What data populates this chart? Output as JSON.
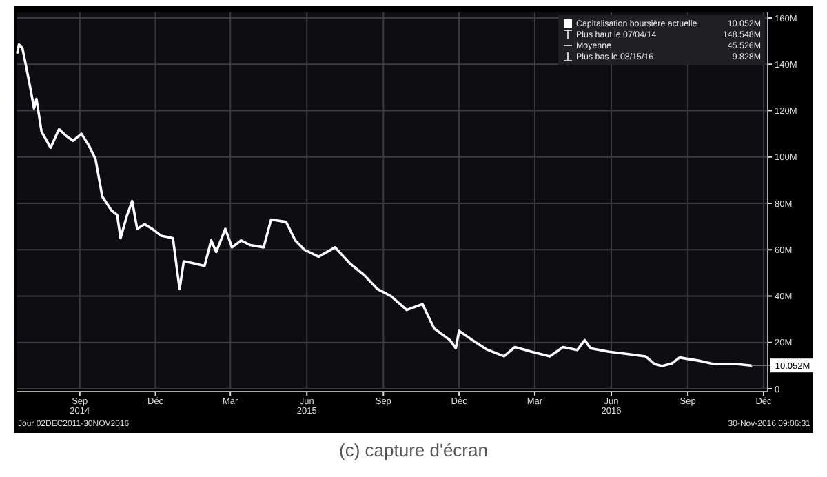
{
  "chart_data": {
    "type": "line",
    "x": [
      "2014-07-02",
      "2014-07-04",
      "2014-07-08",
      "2014-07-12",
      "2014-07-18",
      "2014-07-22",
      "2014-07-25",
      "2014-07-31",
      "2014-08-11",
      "2014-08-21",
      "2014-08-30",
      "2014-09-07",
      "2014-09-17",
      "2014-09-26",
      "2014-10-04",
      "2014-10-12",
      "2014-10-23",
      "2014-10-30",
      "2014-11-03",
      "2014-11-11",
      "2014-11-17",
      "2014-11-23",
      "2014-12-02",
      "2014-12-11",
      "2014-12-22",
      "2015-01-05",
      "2015-01-13",
      "2015-01-18",
      "2015-02-01",
      "2015-02-12",
      "2015-02-20",
      "2015-02-26",
      "2015-03-09",
      "2015-03-17",
      "2015-03-28",
      "2015-04-08",
      "2015-04-24",
      "2015-05-03",
      "2015-05-21",
      "2015-06-01",
      "2015-06-12",
      "2015-06-29",
      "2015-07-19",
      "2015-08-06",
      "2015-08-23",
      "2015-09-08",
      "2015-09-24",
      "2015-10-13",
      "2015-11-01",
      "2015-11-15",
      "2015-12-04",
      "2015-12-11",
      "2015-12-15",
      "2015-12-31",
      "2016-01-17",
      "2016-02-07",
      "2016-02-20",
      "2016-03-11",
      "2016-04-02",
      "2016-04-18",
      "2016-05-05",
      "2016-05-14",
      "2016-05-21",
      "2016-06-12",
      "2016-07-04",
      "2016-07-26",
      "2016-08-06",
      "2016-08-15",
      "2016-08-27",
      "2016-09-05",
      "2016-09-30",
      "2016-10-16",
      "2016-11-12",
      "2016-11-30"
    ],
    "series": [
      {
        "name": "Capitalisation boursière actuelle",
        "color": "#ffffff",
        "values": [
          145,
          148.5,
          147,
          140,
          129,
          121,
          125,
          111,
          104,
          112,
          109,
          107,
          110,
          105,
          99,
          83,
          77,
          75,
          65,
          75,
          81,
          69,
          71,
          69,
          66,
          65,
          43,
          55,
          54,
          53,
          64,
          59,
          69,
          61,
          64,
          62,
          61,
          73,
          72,
          64,
          60,
          57,
          61,
          54,
          49,
          43,
          40,
          34,
          36.5,
          26,
          21,
          17.5,
          25,
          21,
          17,
          14,
          18,
          16,
          14,
          18,
          16.7,
          21,
          17.5,
          16,
          15,
          14,
          10.7,
          9.8,
          11,
          13.5,
          12,
          10.7,
          10.7,
          10.052
        ]
      }
    ],
    "xlim": [
      "2014-07-01",
      "2016-12-20"
    ],
    "xticks": [
      {
        "value": "2014-09-15",
        "label": "Sep\n2014"
      },
      {
        "value": "2014-12-15",
        "label": "Déc"
      },
      {
        "value": "2015-03-15",
        "label": "Mar"
      },
      {
        "value": "2015-06-15",
        "label": "Jun\n2015"
      },
      {
        "value": "2015-09-15",
        "label": "Sep"
      },
      {
        "value": "2015-12-15",
        "label": "Déc"
      },
      {
        "value": "2016-03-15",
        "label": "Mar"
      },
      {
        "value": "2016-06-15",
        "label": "Jun\n2016"
      },
      {
        "value": "2016-09-15",
        "label": "Sep"
      },
      {
        "value": "2016-12-15",
        "label": "Déc"
      }
    ],
    "ylim": [
      0,
      160
    ],
    "yticks": [
      0,
      {
        "value": 20,
        "label": "20M"
      },
      {
        "value": 40,
        "label": "40M"
      },
      {
        "value": 60,
        "label": "60M"
      },
      {
        "value": 80,
        "label": "80M"
      },
      {
        "value": 100,
        "label": "100M"
      },
      {
        "value": 120,
        "label": "120M"
      },
      {
        "value": 140,
        "label": "140M"
      },
      {
        "value": 160,
        "label": "160M"
      }
    ],
    "grid": true,
    "legend": "top right",
    "line_style": "solid",
    "marker": "none",
    "annotations": [
      {
        "text": "10.052M",
        "x": "2016-11-30",
        "y": 10.052
      },
      "10.052M",
      "Plus haut le 07/04/14",
      "148.548M",
      "Moyenne",
      "45.526M",
      "Plus bas le 08/15/16",
      "9.828M",
      "Jour 02DEC2011-30NOV2016",
      "30-Nov-2016 09:06:31",
      "(c) capture d'écran"
    ]
  }
}
